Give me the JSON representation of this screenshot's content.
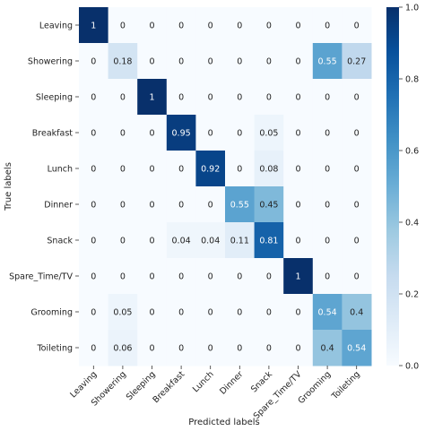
{
  "chart_data": {
    "type": "heatmap",
    "title": "",
    "xlabel": "Predicted labels",
    "ylabel": "True labels",
    "x_categories": [
      "Leaving",
      "Showering",
      "Sleeping",
      "Breakfast",
      "Lunch",
      "Dinner",
      "Snack",
      "Spare_Time/TV",
      "Grooming",
      "Toileting"
    ],
    "y_categories": [
      "Leaving",
      "Showering",
      "Sleeping",
      "Breakfast",
      "Lunch",
      "Dinner",
      "Snack",
      "Spare_Time/TV",
      "Grooming",
      "Toileting"
    ],
    "values": [
      [
        1,
        0,
        0,
        0,
        0,
        0,
        0,
        0,
        0,
        0
      ],
      [
        0,
        0.18,
        0,
        0,
        0,
        0,
        0,
        0,
        0.55,
        0.27
      ],
      [
        0,
        0,
        1,
        0,
        0,
        0,
        0,
        0,
        0,
        0
      ],
      [
        0,
        0,
        0,
        0.95,
        0,
        0,
        0.05,
        0,
        0,
        0
      ],
      [
        0,
        0,
        0,
        0,
        0.92,
        0,
        0.08,
        0,
        0,
        0
      ],
      [
        0,
        0,
        0,
        0,
        0,
        0.55,
        0.45,
        0,
        0,
        0
      ],
      [
        0,
        0,
        0,
        0.04,
        0.04,
        0.11,
        0.81,
        0,
        0,
        0
      ],
      [
        0,
        0,
        0,
        0,
        0,
        0,
        0,
        1,
        0,
        0
      ],
      [
        0,
        0.05,
        0,
        0,
        0,
        0,
        0,
        0,
        0.54,
        0.4
      ],
      [
        0,
        0.06,
        0,
        0,
        0,
        0,
        0,
        0,
        0.4,
        0.54
      ]
    ],
    "value_range": [
      0,
      1
    ],
    "colormap": "Blues",
    "colorbar": {
      "ticks": [
        0.0,
        0.2,
        0.4,
        0.6,
        0.8,
        1.0
      ],
      "tick_labels": [
        "0.0",
        "0.2",
        "0.4",
        "0.6",
        "0.8",
        "1.0"
      ]
    },
    "grid": false
  }
}
